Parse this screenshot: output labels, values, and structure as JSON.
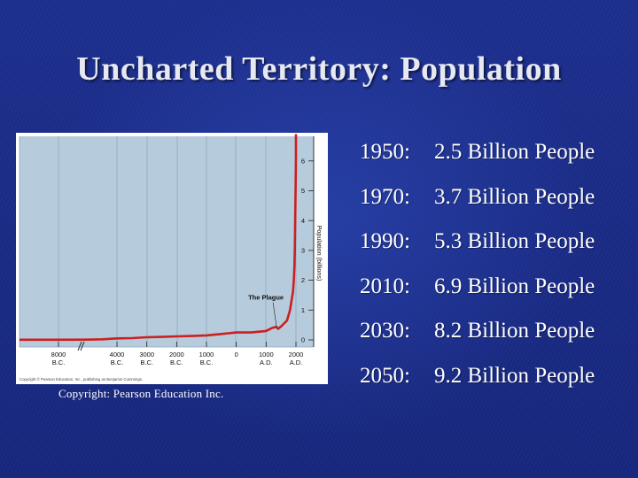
{
  "slide": {
    "title": "Uncharted Territory: Population",
    "copyright": "Copyright: Pearson Education Inc."
  },
  "stats": [
    {
      "year": "1950:",
      "text": "2.5 Billion People"
    },
    {
      "year": "1970:",
      "text": "3.7 Billion People"
    },
    {
      "year": "1990:",
      "text": "5.3 Billion People"
    },
    {
      "year": "2010:",
      "text": "6.9 Billion People"
    },
    {
      "year": "2030:",
      "text": "8.2 Billion People"
    },
    {
      "year": "2050:",
      "text": "9.2 Billion People"
    }
  ],
  "chart_data": {
    "type": "line",
    "title": "",
    "xlabel": "",
    "ylabel": "Population (billions)",
    "ylim": [
      0,
      7
    ],
    "xlim": [
      -8000,
      2000
    ],
    "grid": true,
    "y_ticks": [
      "0",
      "1",
      "2",
      "3",
      "4",
      "5",
      "6"
    ],
    "x_ticks": [
      {
        "value": -8000,
        "label": "8000",
        "era": "B.C."
      },
      {
        "value": -4000,
        "label": "4000",
        "era": "B.C."
      },
      {
        "value": -3000,
        "label": "3000",
        "era": "B.C."
      },
      {
        "value": -2000,
        "label": "2000",
        "era": "B.C."
      },
      {
        "value": -1000,
        "label": "1000",
        "era": "B.C."
      },
      {
        "value": 0,
        "label": "0",
        "era": ""
      },
      {
        "value": 1000,
        "label": "1000",
        "era": "A.D."
      },
      {
        "value": 2000,
        "label": "2000",
        "era": "A.D."
      }
    ],
    "axis_break": true,
    "annotation": {
      "text": "The Plague",
      "x": 1350,
      "y": 0.37
    },
    "colors": {
      "line": "#cc1f1f",
      "plot_bg": "#b6cbdc",
      "grid": "#8fa8bd"
    },
    "series": [
      {
        "x": [
          -8000,
          -6000,
          -5000,
          -4000,
          -3500,
          -3000,
          -2500,
          -2000,
          -1500,
          -1000,
          -500,
          0,
          500,
          1000,
          1200,
          1340,
          1400,
          1500,
          1600,
          1700,
          1800,
          1850,
          1900,
          1930,
          1950,
          1960,
          1970,
          1980,
          1990,
          2000,
          2010
        ],
        "y": [
          0.005,
          0.01,
          0.02,
          0.05,
          0.06,
          0.09,
          0.1,
          0.12,
          0.13,
          0.15,
          0.2,
          0.25,
          0.25,
          0.3,
          0.4,
          0.44,
          0.37,
          0.45,
          0.55,
          0.65,
          1.0,
          1.3,
          1.6,
          2.0,
          2.5,
          3.0,
          3.7,
          4.4,
          5.3,
          6.1,
          6.9
        ]
      }
    ],
    "credit": "Copyright © Pearson Education, Inc., publishing as Benjamin Cummings."
  }
}
